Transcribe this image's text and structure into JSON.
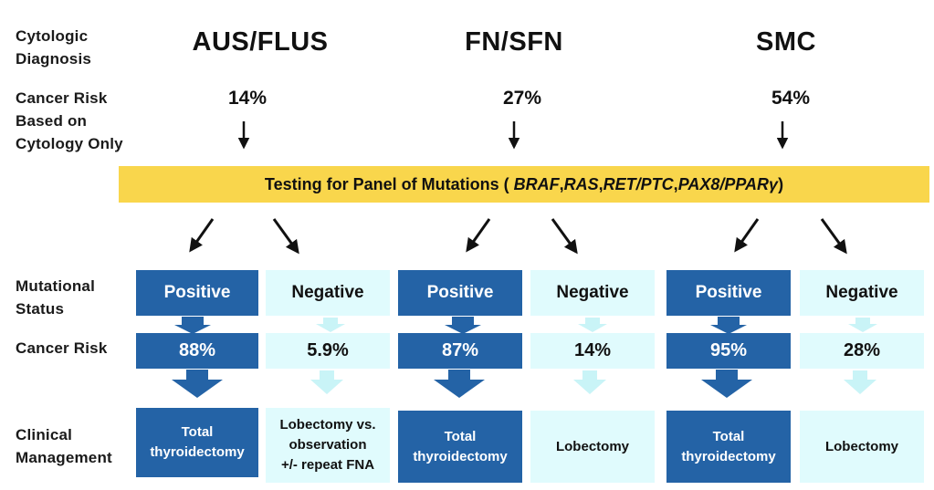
{
  "row_labels": {
    "cytologic_diagnosis": [
      "Cytologic",
      "Diagnosis"
    ],
    "cancer_risk_cytology": [
      "Cancer Risk",
      "Based on",
      "Cytology Only"
    ],
    "mutational_status": [
      "Mutational",
      "Status"
    ],
    "cancer_risk": "Cancer Risk",
    "clinical_management": [
      "Clinical",
      "Management"
    ]
  },
  "banner": {
    "prefix": "Testing for Panel of Mutations (",
    "genes": [
      "BRAF",
      "RAS",
      "RET/PTC",
      "PAX8/PPARγ"
    ],
    "separator": ", ",
    "suffix": ")"
  },
  "columns": [
    {
      "category": "AUS/FLUS",
      "cytology_risk": "14%",
      "positive": {
        "label": "Positive",
        "risk": "88%",
        "management": [
          "Total",
          "thyroidectomy"
        ]
      },
      "negative": {
        "label": "Negative",
        "risk": "5.9%",
        "management": [
          "Lobectomy vs.",
          "observation",
          "+/- repeat FNA"
        ]
      }
    },
    {
      "category": "FN/SFN",
      "cytology_risk": "27%",
      "positive": {
        "label": "Positive",
        "risk": "87%",
        "management": [
          "Total",
          "thyroidectomy"
        ]
      },
      "negative": {
        "label": "Negative",
        "risk": "14%",
        "management": [
          "Lobectomy"
        ]
      }
    },
    {
      "category": "SMC",
      "cytology_risk": "54%",
      "positive": {
        "label": "Positive",
        "risk": "95%",
        "management": [
          "Total",
          "thyroidectomy"
        ]
      },
      "negative": {
        "label": "Negative",
        "risk": "28%",
        "management": [
          "Lobectomy"
        ]
      }
    }
  ],
  "colors": {
    "banner": "#f9d64c",
    "positive_box": "#2463a6",
    "negative_box": "#e0fbfd",
    "positive_arrow": "#2463a6",
    "negative_arrow": "#c9f4f7"
  }
}
